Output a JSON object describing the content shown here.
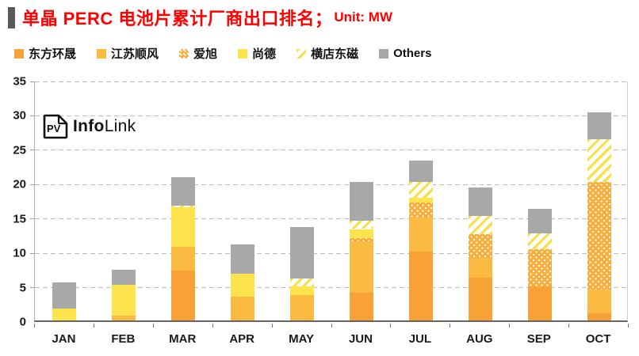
{
  "header": {
    "title": "单晶 PERC 电池片累计厂商出口排名；",
    "unit": "Unit: MW",
    "title_color": "#fe0000",
    "accent_color": "#595959"
  },
  "logo": {
    "pv": "PV",
    "info": "Info",
    "link": "Link"
  },
  "chart_data": {
    "type": "bar",
    "stacked": true,
    "title": "单晶 PERC 电池片累计厂商出口排名",
    "unit_label": "Unit: MW",
    "categories": [
      "JAN",
      "FEB",
      "MAR",
      "APR",
      "MAY",
      "JUN",
      "JUL",
      "AUG",
      "SEP",
      "OCT"
    ],
    "series": [
      {
        "name": "东方环晟",
        "color": "#f8a137",
        "pattern": "solid",
        "values": [
          0,
          0,
          7.3,
          0,
          0,
          4.0,
          10.0,
          6.2,
          4.9,
          1.0
        ]
      },
      {
        "name": "江苏顺风",
        "color": "#fbbb42",
        "pattern": "solid",
        "values": [
          0,
          0.7,
          3.4,
          3.5,
          3.7,
          7.5,
          5.0,
          2.9,
          0,
          3.5
        ]
      },
      {
        "name": "爱旭",
        "color": "#faad3a",
        "pattern": "dots",
        "values": [
          0,
          0,
          0,
          0,
          0,
          0.5,
          2.2,
          3.5,
          5.5,
          15.6
        ]
      },
      {
        "name": "尚德",
        "color": "#ffe34d",
        "pattern": "solid",
        "values": [
          1.7,
          4.5,
          5.8,
          3.3,
          1.2,
          1.3,
          0.6,
          0,
          0,
          0
        ]
      },
      {
        "name": "横店东磁",
        "color": "#f7e04b",
        "pattern": "hatch",
        "values": [
          0,
          0,
          0.2,
          0,
          1.2,
          1.2,
          2.3,
          2.6,
          2.3,
          6.3
        ]
      },
      {
        "name": "Others",
        "color": "#a8a8a8",
        "pattern": "solid",
        "values": [
          3.8,
          2.2,
          4.1,
          4.3,
          7.5,
          5.6,
          3.2,
          4.1,
          3.5,
          3.9
        ]
      }
    ],
    "totals": [
      5.5,
      7.4,
      20.8,
      11.1,
      13.6,
      20.1,
      23.3,
      19.3,
      16.2,
      30.3
    ],
    "ylim": [
      0,
      35
    ],
    "yticks": [
      0,
      5,
      10,
      15,
      20,
      25,
      30,
      35
    ],
    "grid": "dashed-horizontal",
    "legend_position": "top"
  }
}
